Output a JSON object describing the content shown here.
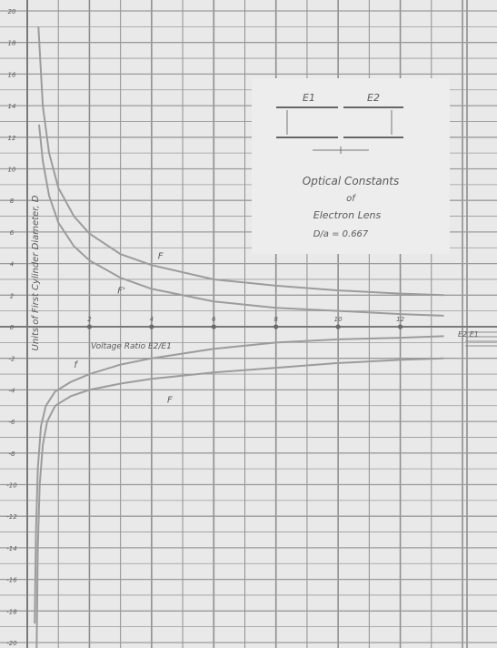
{
  "chart_data": {
    "type": "line",
    "title": "Optical Constants of Electron Lens",
    "title_lines": [
      "Optical Constants",
      "of",
      "Electron Lens"
    ],
    "ratio_label": "D/a = 0.667",
    "inset_labels": {
      "left_cylinder": "E1",
      "right_cylinder": "E2"
    },
    "xlabel": "Voltage Ratio E2/E1",
    "ylabel": "Units of First Cylinder Diameter, D",
    "right_panel_fragment": "E2 E1",
    "xlim": [
      0,
      7
    ],
    "ylim": [
      -20,
      20
    ],
    "x_ticks": [
      {
        "value": 1,
        "label": "2"
      },
      {
        "value": 2,
        "label": "4"
      },
      {
        "value": 3,
        "label": "6"
      },
      {
        "value": 4,
        "label": "8"
      },
      {
        "value": 5,
        "label": "10"
      },
      {
        "value": 6,
        "label": "12"
      }
    ],
    "y_ticks": [
      {
        "value": 20,
        "label": "20"
      },
      {
        "value": 18,
        "label": "18"
      },
      {
        "value": 16,
        "label": "16"
      },
      {
        "value": 14,
        "label": "14"
      },
      {
        "value": 12,
        "label": "12"
      },
      {
        "value": 10,
        "label": "10"
      },
      {
        "value": 8,
        "label": "8"
      },
      {
        "value": 6,
        "label": "6"
      },
      {
        "value": 4,
        "label": "4"
      },
      {
        "value": 2,
        "label": "2"
      },
      {
        "value": 0,
        "label": "0"
      },
      {
        "value": -2,
        "label": "-2"
      },
      {
        "value": -4,
        "label": "-4"
      },
      {
        "value": -6,
        "label": "-6"
      },
      {
        "value": -8,
        "label": "-8"
      },
      {
        "value": -10,
        "label": "-10"
      },
      {
        "value": -12,
        "label": "-12"
      },
      {
        "value": -14,
        "label": "-14"
      },
      {
        "value": -16,
        "label": "-16"
      },
      {
        "value": -18,
        "label": "-18"
      },
      {
        "value": -20,
        "label": "-20"
      }
    ],
    "grid": true,
    "series": [
      {
        "name": "F",
        "label_at": [
          2.1,
          4.3
        ],
        "points": [
          [
            0.18,
            19.0
          ],
          [
            0.25,
            14.0
          ],
          [
            0.35,
            11.0
          ],
          [
            0.5,
            8.8
          ],
          [
            0.75,
            7.0
          ],
          [
            1.0,
            5.9
          ],
          [
            1.5,
            4.6
          ],
          [
            2.0,
            3.9
          ],
          [
            3.0,
            3.0
          ],
          [
            4.0,
            2.6
          ],
          [
            5.0,
            2.3
          ],
          [
            6.0,
            2.1
          ],
          [
            6.7,
            2.0
          ]
        ]
      },
      {
        "name": "F'",
        "label_at": [
          1.45,
          2.1
        ],
        "points": [
          [
            0.19,
            12.8
          ],
          [
            0.25,
            10.5
          ],
          [
            0.35,
            8.3
          ],
          [
            0.5,
            6.6
          ],
          [
            0.75,
            5.1
          ],
          [
            1.0,
            4.2
          ],
          [
            1.5,
            3.1
          ],
          [
            2.0,
            2.4
          ],
          [
            3.0,
            1.6
          ],
          [
            4.0,
            1.2
          ],
          [
            5.0,
            1.0
          ],
          [
            6.0,
            0.8
          ],
          [
            6.7,
            0.7
          ]
        ]
      },
      {
        "name": "f",
        "label_at": [
          0.75,
          -2.6
        ],
        "points": [
          [
            0.12,
            -18.8
          ],
          [
            0.14,
            -13.0
          ],
          [
            0.17,
            -9.0
          ],
          [
            0.22,
            -6.3
          ],
          [
            0.3,
            -5.0
          ],
          [
            0.45,
            -4.1
          ],
          [
            0.7,
            -3.5
          ],
          [
            1.0,
            -3.0
          ],
          [
            1.5,
            -2.4
          ],
          [
            2.0,
            -2.0
          ],
          [
            3.0,
            -1.4
          ],
          [
            4.0,
            -1.0
          ],
          [
            5.0,
            -0.8
          ],
          [
            6.0,
            -0.7
          ],
          [
            6.7,
            -0.6
          ]
        ]
      },
      {
        "name": "F",
        "label_at": [
          2.25,
          -4.8
        ],
        "points": [
          [
            0.15,
            -20.5
          ],
          [
            0.17,
            -14.0
          ],
          [
            0.2,
            -10.0
          ],
          [
            0.25,
            -7.5
          ],
          [
            0.32,
            -6.0
          ],
          [
            0.45,
            -5.0
          ],
          [
            0.7,
            -4.4
          ],
          [
            1.0,
            -4.0
          ],
          [
            1.5,
            -3.6
          ],
          [
            2.0,
            -3.3
          ],
          [
            3.0,
            -2.9
          ],
          [
            4.0,
            -2.6
          ],
          [
            5.0,
            -2.3
          ],
          [
            6.0,
            -2.1
          ],
          [
            6.7,
            -2.0
          ]
        ]
      }
    ]
  }
}
